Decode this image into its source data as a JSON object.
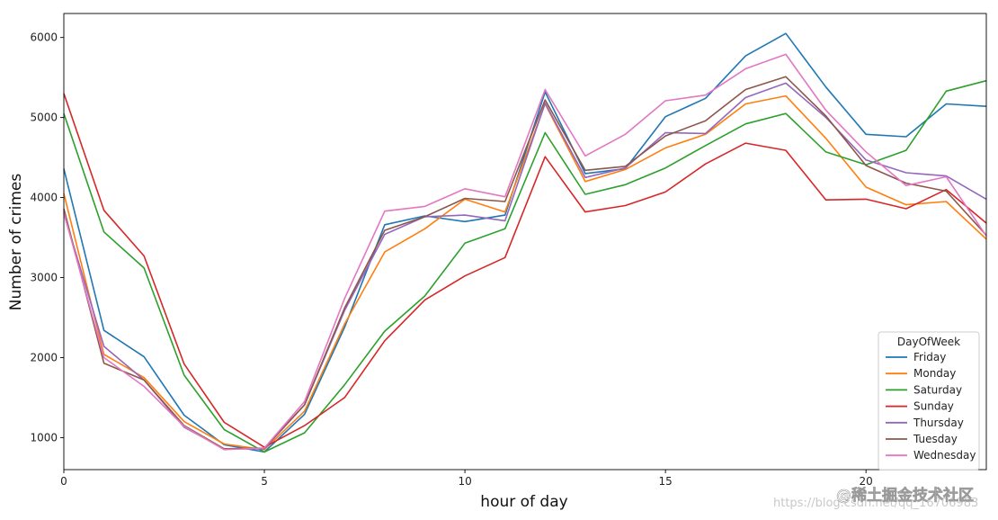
{
  "chart_data": {
    "type": "line",
    "xlabel": "hour of day",
    "ylabel": "Number of crimes",
    "xlim": [
      0,
      23
    ],
    "ylim": [
      600,
      6300
    ],
    "xticks": [
      0,
      5,
      10,
      15,
      20
    ],
    "yticks": [
      1000,
      2000,
      3000,
      4000,
      5000,
      6000
    ],
    "x": [
      0,
      1,
      2,
      3,
      4,
      5,
      6,
      7,
      8,
      9,
      10,
      11,
      12,
      13,
      14,
      15,
      16,
      17,
      18,
      19,
      20,
      21,
      22,
      23
    ],
    "legend_title": "DayOfWeek",
    "legend_position": "lower-right",
    "series": [
      {
        "name": "Friday",
        "color": "#1f77b4",
        "values": [
          4360,
          2340,
          2010,
          1280,
          910,
          820,
          1290,
          2380,
          3660,
          3770,
          3700,
          3780,
          5320,
          4300,
          4360,
          5010,
          5240,
          5770,
          6050,
          5380,
          4790,
          4760,
          5170,
          5140
        ]
      },
      {
        "name": "Monday",
        "color": "#ff7f0e",
        "values": [
          4050,
          2040,
          1750,
          1200,
          920,
          850,
          1330,
          2420,
          3320,
          3610,
          3980,
          3820,
          5170,
          4200,
          4350,
          4620,
          4790,
          5170,
          5270,
          4740,
          4130,
          3910,
          3950,
          3480
        ]
      },
      {
        "name": "Saturday",
        "color": "#2ca02c",
        "values": [
          5050,
          3570,
          3120,
          1780,
          1100,
          820,
          1060,
          1660,
          2330,
          2770,
          3430,
          3610,
          4810,
          4040,
          4160,
          4370,
          4650,
          4920,
          5050,
          4570,
          4410,
          4590,
          5330,
          5460
        ]
      },
      {
        "name": "Sunday",
        "color": "#d62728",
        "values": [
          5300,
          3840,
          3270,
          1920,
          1190,
          880,
          1150,
          1500,
          2210,
          2720,
          3020,
          3250,
          4510,
          3820,
          3900,
          4070,
          4420,
          4680,
          4590,
          3970,
          3980,
          3860,
          4100,
          3680
        ]
      },
      {
        "name": "Thursday",
        "color": "#9467bd",
        "values": [
          3800,
          2140,
          1720,
          1130,
          860,
          860,
          1410,
          2590,
          3540,
          3760,
          3780,
          3710,
          5180,
          4250,
          4370,
          4810,
          4800,
          5250,
          5430,
          5000,
          4470,
          4310,
          4270,
          3980
        ]
      },
      {
        "name": "Tuesday",
        "color": "#8c564b",
        "values": [
          3860,
          1930,
          1720,
          1150,
          860,
          870,
          1410,
          2620,
          3590,
          3760,
          3990,
          3950,
          5220,
          4340,
          4390,
          4770,
          4960,
          5350,
          5510,
          5020,
          4400,
          4180,
          4080,
          3530
        ]
      },
      {
        "name": "Wednesday",
        "color": "#e377c2",
        "values": [
          3810,
          2000,
          1640,
          1140,
          850,
          870,
          1450,
          2740,
          3830,
          3890,
          4110,
          4010,
          5350,
          4520,
          4790,
          5210,
          5280,
          5610,
          5790,
          5090,
          4570,
          4150,
          4260,
          3520
        ]
      }
    ]
  },
  "watermark": {
    "url_text": "https://blog.csdn.net/qq_16706983",
    "logo_text": "@稀土掘金技术社区"
  }
}
